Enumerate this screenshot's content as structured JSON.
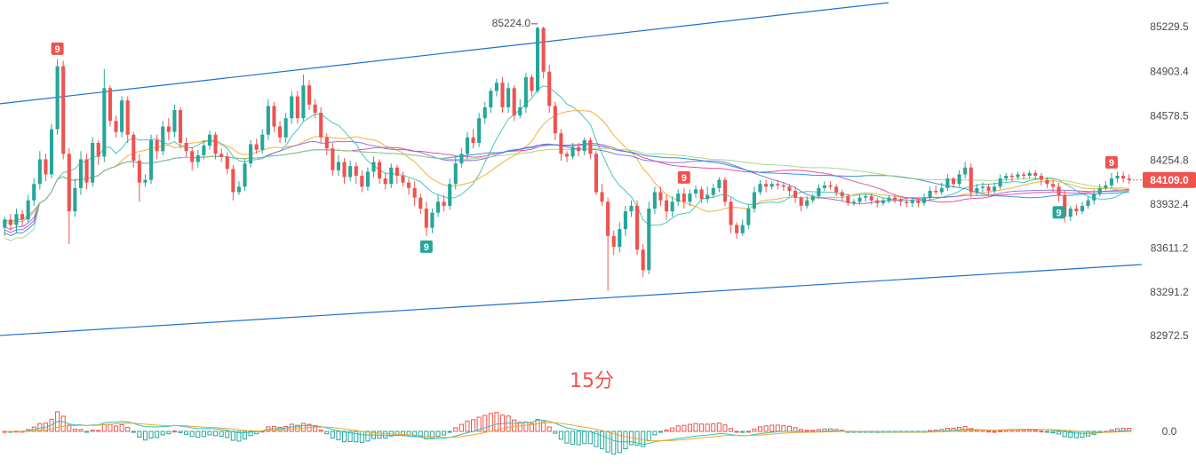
{
  "chart_data": {
    "type": "candlestick",
    "timeframe_label": "15分",
    "y_axis": {
      "ticks": [
        85229.5,
        84903.4,
        84578.5,
        84254.8,
        83932.4,
        83611.2,
        83291.2,
        82972.5
      ],
      "range": [
        82800,
        85400
      ]
    },
    "last_price": {
      "label": "84109.0",
      "value": 84109.0
    },
    "high_marker": {
      "label": "85224.0",
      "value": 85224.0
    },
    "macd_zero_label": "0.0",
    "sequential_markers": [
      {
        "label": "9",
        "kind": "sell",
        "candle": 9
      },
      {
        "label": "9",
        "kind": "buy",
        "candle": 72
      },
      {
        "label": "9",
        "kind": "sell",
        "candle": 116
      },
      {
        "label": "9",
        "kind": "buy",
        "candle": 180
      },
      {
        "label": "9",
        "kind": "sell",
        "candle": 189
      }
    ],
    "channel": {
      "upper": [
        [
          0,
          84670
        ],
        [
          150,
          85400
        ]
      ],
      "lower": [
        [
          0,
          82975
        ],
        [
          190,
          83480
        ]
      ]
    },
    "moving_averages": [
      {
        "color": "#2ec4b6",
        "period": 10
      },
      {
        "color": "#f5a623",
        "period": 20
      },
      {
        "color": "#7b6cd9",
        "period": 45
      },
      {
        "color": "#e040a0",
        "period": 60
      },
      {
        "color": "#1e88e5",
        "period": 75
      },
      {
        "color": "#9ed67a",
        "period": 100
      }
    ],
    "candles": [
      [
        83760,
        83820,
        83700,
        83840
      ],
      [
        83820,
        83780,
        83740,
        83860
      ],
      [
        83780,
        83860,
        83720,
        83900
      ],
      [
        83860,
        83820,
        83770,
        83890
      ],
      [
        83820,
        83960,
        83800,
        84000
      ],
      [
        83960,
        84080,
        83920,
        84120
      ],
      [
        84080,
        84260,
        84040,
        84320
      ],
      [
        84260,
        84150,
        84100,
        84300
      ],
      [
        84150,
        84480,
        84120,
        84520
      ],
      [
        84480,
        84940,
        84440,
        84990
      ],
      [
        84940,
        84300,
        84260,
        84980
      ],
      [
        84300,
        83880,
        83640,
        84340
      ],
      [
        83880,
        84050,
        83840,
        84120
      ],
      [
        84050,
        84260,
        84000,
        84320
      ],
      [
        84260,
        84090,
        84040,
        84300
      ],
      [
        84090,
        84380,
        84060,
        84420
      ],
      [
        84380,
        84280,
        84220,
        84400
      ],
      [
        84280,
        84780,
        84240,
        84920
      ],
      [
        84780,
        84540,
        84500,
        84800
      ],
      [
        84540,
        84460,
        84420,
        84580
      ],
      [
        84460,
        84690,
        84420,
        84720
      ],
      [
        84690,
        84440,
        84380,
        84720
      ],
      [
        84440,
        84250,
        84200,
        84460
      ],
      [
        84250,
        84090,
        83950,
        84300
      ],
      [
        84090,
        84110,
        84060,
        84150
      ],
      [
        84110,
        84400,
        84080,
        84440
      ],
      [
        84400,
        84320,
        84260,
        84440
      ],
      [
        84320,
        84500,
        84290,
        84540
      ],
      [
        84500,
        84460,
        84400,
        84560
      ],
      [
        84460,
        84620,
        84420,
        84660
      ],
      [
        84620,
        84380,
        84340,
        84640
      ],
      [
        84380,
        84320,
        84280,
        84420
      ],
      [
        84320,
        84240,
        84180,
        84350
      ],
      [
        84240,
        84290,
        84200,
        84330
      ],
      [
        84290,
        84360,
        84260,
        84400
      ],
      [
        84360,
        84440,
        84330,
        84470
      ],
      [
        84440,
        84300,
        84260,
        84460
      ],
      [
        84300,
        84280,
        84240,
        84340
      ],
      [
        84280,
        84190,
        84150,
        84310
      ],
      [
        84190,
        84020,
        83960,
        84220
      ],
      [
        84020,
        84060,
        84000,
        84100
      ],
      [
        84060,
        84230,
        84030,
        84260
      ],
      [
        84230,
        84370,
        84200,
        84400
      ],
      [
        84370,
        84330,
        84300,
        84410
      ],
      [
        84330,
        84440,
        84300,
        84480
      ],
      [
        84440,
        84650,
        84400,
        84700
      ],
      [
        84650,
        84500,
        84460,
        84680
      ],
      [
        84500,
        84420,
        84380,
        84540
      ],
      [
        84420,
        84560,
        84380,
        84600
      ],
      [
        84560,
        84720,
        84520,
        84760
      ],
      [
        84720,
        84560,
        84520,
        84760
      ],
      [
        84560,
        84800,
        84540,
        84880
      ],
      [
        84800,
        84660,
        84620,
        84840
      ],
      [
        84660,
        84600,
        84560,
        84700
      ],
      [
        84600,
        84420,
        84380,
        84640
      ],
      [
        84420,
        84340,
        84290,
        84450
      ],
      [
        84340,
        84180,
        84140,
        84380
      ],
      [
        84180,
        84240,
        84140,
        84290
      ],
      [
        84240,
        84130,
        84080,
        84270
      ],
      [
        84130,
        84210,
        84100,
        84250
      ],
      [
        84210,
        84140,
        84080,
        84240
      ],
      [
        84140,
        84060,
        84020,
        84180
      ],
      [
        84060,
        84170,
        84030,
        84200
      ],
      [
        84170,
        84240,
        84130,
        84280
      ],
      [
        84240,
        84120,
        84080,
        84260
      ],
      [
        84120,
        84080,
        84040,
        84160
      ],
      [
        84080,
        84200,
        84050,
        84230
      ],
      [
        84200,
        84140,
        84080,
        84220
      ],
      [
        84140,
        84090,
        84060,
        84170
      ],
      [
        84090,
        84050,
        84000,
        84120
      ],
      [
        84050,
        83980,
        83920,
        84100
      ],
      [
        83980,
        83900,
        83860,
        84010
      ],
      [
        83900,
        83760,
        83700,
        83950
      ],
      [
        83760,
        83870,
        83720,
        83900
      ],
      [
        83870,
        83950,
        83840,
        84000
      ],
      [
        83950,
        83920,
        83880,
        84000
      ],
      [
        83920,
        84080,
        83890,
        84120
      ],
      [
        84080,
        84230,
        84040,
        84280
      ],
      [
        84230,
        84300,
        84200,
        84340
      ],
      [
        84300,
        84420,
        84260,
        84460
      ],
      [
        84420,
        84380,
        84340,
        84480
      ],
      [
        84380,
        84560,
        84350,
        84600
      ],
      [
        84560,
        84640,
        84520,
        84680
      ],
      [
        84640,
        84760,
        84600,
        84780
      ],
      [
        84760,
        84820,
        84720,
        84850
      ],
      [
        84820,
        84640,
        84600,
        84860
      ],
      [
        84640,
        84780,
        84600,
        84820
      ],
      [
        84780,
        84580,
        84540,
        84800
      ],
      [
        84580,
        84640,
        84560,
        84700
      ],
      [
        84640,
        84860,
        84600,
        84890
      ],
      [
        84860,
        84760,
        84720,
        84880
      ],
      [
        84760,
        85220,
        84740,
        85230
      ],
      [
        85220,
        84900,
        84850,
        85230
      ],
      [
        84900,
        84650,
        84600,
        84950
      ],
      [
        84650,
        84450,
        84400,
        84680
      ],
      [
        84450,
        84300,
        84250,
        84480
      ],
      [
        84300,
        84280,
        84240,
        84320
      ],
      [
        84280,
        84350,
        84260,
        84380
      ],
      [
        84350,
        84320,
        84280,
        84380
      ],
      [
        84320,
        84400,
        84290,
        84420
      ],
      [
        84400,
        84300,
        84260,
        84420
      ],
      [
        84300,
        84020,
        84000,
        84320
      ],
      [
        84020,
        83950,
        83920,
        84080
      ],
      [
        83950,
        83700,
        83300,
        83980
      ],
      [
        83700,
        83620,
        83560,
        83740
      ],
      [
        83620,
        83750,
        83580,
        83800
      ],
      [
        83750,
        83880,
        83700,
        83920
      ],
      [
        83880,
        83920,
        83840,
        83960
      ],
      [
        83920,
        83600,
        83560,
        83960
      ],
      [
        83600,
        83450,
        83400,
        83640
      ],
      [
        83450,
        83900,
        83420,
        83950
      ],
      [
        83900,
        84020,
        83860,
        84060
      ],
      [
        84020,
        83960,
        83920,
        84060
      ],
      [
        83960,
        83880,
        83820,
        84000
      ],
      [
        83880,
        83950,
        83840,
        83990
      ],
      [
        83950,
        84010,
        83920,
        84040
      ],
      [
        84010,
        83950,
        83900,
        84050
      ],
      [
        83950,
        84010,
        83920,
        84040
      ],
      [
        84010,
        84040,
        83980,
        84070
      ],
      [
        84040,
        83970,
        83940,
        84060
      ],
      [
        83970,
        84000,
        83940,
        84060
      ],
      [
        84000,
        84050,
        83980,
        84080
      ],
      [
        84050,
        84110,
        84020,
        84130
      ],
      [
        84110,
        83950,
        83920,
        84130
      ],
      [
        83950,
        83780,
        83720,
        83980
      ],
      [
        83780,
        83720,
        83680,
        83800
      ],
      [
        83720,
        83780,
        83700,
        83820
      ],
      [
        83780,
        83900,
        83750,
        83930
      ],
      [
        83900,
        84020,
        83870,
        84060
      ],
      [
        84020,
        84080,
        84000,
        84110
      ],
      [
        84080,
        84060,
        84020,
        84110
      ],
      [
        84060,
        84080,
        84040,
        84100
      ],
      [
        84080,
        84070,
        84040,
        84110
      ],
      [
        84070,
        84060,
        84030,
        84090
      ],
      [
        84060,
        84030,
        83990,
        84080
      ],
      [
        84030,
        83980,
        83940,
        84060
      ],
      [
        83980,
        83920,
        83880,
        83990
      ],
      [
        83920,
        83960,
        83900,
        83990
      ],
      [
        83960,
        83990,
        83940,
        84010
      ],
      [
        83990,
        84050,
        83970,
        84080
      ],
      [
        84050,
        84070,
        84030,
        84100
      ],
      [
        84070,
        84060,
        84040,
        84100
      ],
      [
        84060,
        84020,
        83990,
        84080
      ],
      [
        84020,
        83990,
        83960,
        84040
      ],
      [
        83990,
        83940,
        83920,
        84010
      ],
      [
        83940,
        83950,
        83920,
        83970
      ],
      [
        83950,
        83980,
        83930,
        84000
      ],
      [
        83980,
        83990,
        83950,
        84010
      ],
      [
        83990,
        83960,
        83930,
        84010
      ],
      [
        83960,
        83940,
        83910,
        83980
      ],
      [
        83940,
        83960,
        83920,
        83980
      ],
      [
        83960,
        83980,
        83940,
        84000
      ],
      [
        83980,
        83960,
        83940,
        84000
      ],
      [
        83960,
        83950,
        83920,
        83980
      ],
      [
        83950,
        83940,
        83910,
        83980
      ],
      [
        83940,
        83960,
        83910,
        83980
      ],
      [
        83960,
        83940,
        83910,
        83980
      ],
      [
        83940,
        83980,
        83920,
        84010
      ],
      [
        83980,
        84030,
        83960,
        84060
      ],
      [
        84030,
        84020,
        84000,
        84070
      ],
      [
        84020,
        84050,
        84000,
        84090
      ],
      [
        84050,
        84120,
        84030,
        84150
      ],
      [
        84120,
        84080,
        84050,
        84130
      ],
      [
        84080,
        84150,
        84060,
        84180
      ],
      [
        84150,
        84200,
        84120,
        84240
      ],
      [
        84200,
        84020,
        83980,
        84230
      ],
      [
        84020,
        84050,
        84000,
        84080
      ],
      [
        84050,
        84060,
        84020,
        84090
      ],
      [
        84060,
        84030,
        84000,
        84080
      ],
      [
        84030,
        84060,
        84010,
        84090
      ],
      [
        84060,
        84120,
        84040,
        84150
      ],
      [
        84120,
        84140,
        84100,
        84160
      ],
      [
        84140,
        84130,
        84100,
        84160
      ],
      [
        84130,
        84150,
        84110,
        84170
      ],
      [
        84150,
        84140,
        84110,
        84170
      ],
      [
        84140,
        84160,
        84120,
        84180
      ],
      [
        84160,
        84140,
        84110,
        84180
      ],
      [
        84140,
        84110,
        84070,
        84160
      ],
      [
        84110,
        84080,
        84050,
        84130
      ],
      [
        84080,
        84060,
        84020,
        84110
      ],
      [
        84060,
        84000,
        83950,
        84090
      ],
      [
        84000,
        83840,
        83800,
        84030
      ],
      [
        83840,
        83900,
        83810,
        83920
      ],
      [
        83900,
        83880,
        83850,
        83930
      ],
      [
        83880,
        83920,
        83860,
        83950
      ],
      [
        83920,
        83960,
        83900,
        83990
      ],
      [
        83960,
        84010,
        83930,
        84040
      ],
      [
        84010,
        84050,
        83990,
        84080
      ],
      [
        84050,
        84070,
        84030,
        84100
      ],
      [
        84070,
        84120,
        84050,
        84160
      ],
      [
        84120,
        84140,
        84090,
        84170
      ],
      [
        84140,
        84120,
        84090,
        84170
      ],
      [
        84120,
        84109,
        84080,
        84150
      ]
    ]
  }
}
